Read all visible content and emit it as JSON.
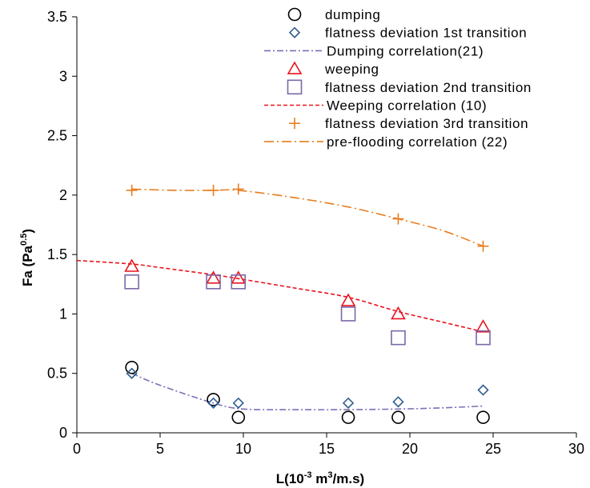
{
  "chart_data": {
    "type": "scatter",
    "xlabel": {
      "main": "L(10",
      "sup1": "-3",
      "mid": " m",
      "sup2": "3",
      "end": "/m.s)"
    },
    "ylabel": {
      "main": "Fa (Pa",
      "sup": "0.5",
      "end": ")"
    },
    "xlim": [
      0,
      30
    ],
    "ylim": [
      0,
      3.5
    ],
    "xticks": [
      "0",
      "5",
      "10",
      "15",
      "20",
      "25",
      "30"
    ],
    "yticks": [
      "0",
      "0.5",
      "1",
      "1.5",
      "2",
      "2.5",
      "3",
      "3.5"
    ],
    "grid": false,
    "legend_position": "top-right",
    "series": [
      {
        "name": "dumping",
        "kind": "marker",
        "marker": "circle",
        "color": "#000000",
        "x": [
          3.3,
          8.2,
          9.7,
          16.3,
          19.3,
          24.4
        ],
        "y": [
          0.55,
          0.28,
          0.13,
          0.13,
          0.13,
          0.13
        ]
      },
      {
        "name": "flatness deviation 1st transition",
        "kind": "marker",
        "marker": "diamond",
        "color": "#2e5d8e",
        "x": [
          3.3,
          8.2,
          9.7,
          16.3,
          19.3,
          24.4
        ],
        "y": [
          0.5,
          0.25,
          0.25,
          0.25,
          0.26,
          0.36
        ]
      },
      {
        "name": "Dumping correlation(21)",
        "kind": "line",
        "dash": "dashdot",
        "color": "#7b70b8",
        "x": [
          3.3,
          5,
          8.2,
          10,
          13,
          16.3,
          19.3,
          22,
          24.4
        ],
        "y": [
          0.5,
          0.4,
          0.25,
          0.2,
          0.195,
          0.195,
          0.2,
          0.21,
          0.225
        ]
      },
      {
        "name": "weeping",
        "kind": "marker",
        "marker": "triangle",
        "color": "#e8141e",
        "x": [
          3.3,
          8.2,
          9.7,
          16.3,
          19.3,
          24.4
        ],
        "y": [
          1.4,
          1.3,
          1.3,
          1.11,
          1.0,
          0.89
        ]
      },
      {
        "name": "flatness deviation 2nd transition",
        "kind": "marker",
        "marker": "square",
        "color": "#7b68a8",
        "x": [
          3.3,
          8.2,
          9.7,
          16.3,
          19.3,
          24.4
        ],
        "y": [
          1.27,
          1.27,
          1.27,
          1.0,
          0.8,
          0.8
        ]
      },
      {
        "name": "Weeping correlation (10)",
        "kind": "line",
        "dash": "dashed",
        "color": "#e8141e",
        "x": [
          0,
          3.3,
          5,
          8.2,
          10,
          13,
          16.3,
          19.3,
          22,
          24.4
        ],
        "y": [
          1.45,
          1.42,
          1.39,
          1.33,
          1.29,
          1.22,
          1.14,
          1.02,
          0.93,
          0.85
        ]
      },
      {
        "name": "flatness deviation 3rd transition",
        "kind": "marker",
        "marker": "plus",
        "color": "#e87d1e",
        "x": [
          3.3,
          8.2,
          9.7,
          19.3,
          24.4
        ],
        "y": [
          2.04,
          2.04,
          2.05,
          1.8,
          1.57
        ]
      },
      {
        "name": "pre-flooding correlation (22)",
        "kind": "line",
        "dash": "longdashdot",
        "color": "#e87d1e",
        "x": [
          3.3,
          6,
          8.2,
          9.7,
          13,
          16.3,
          19.3,
          22,
          24.4
        ],
        "y": [
          2.05,
          2.04,
          2.04,
          2.04,
          1.98,
          1.9,
          1.8,
          1.7,
          1.57
        ]
      }
    ]
  }
}
